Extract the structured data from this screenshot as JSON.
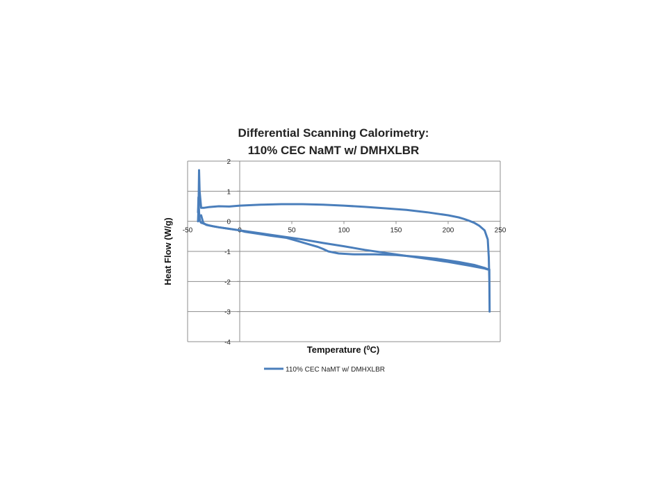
{
  "chart_data": {
    "type": "line",
    "title_lines": [
      "Differential Scanning Calorimetry:",
      "110% CEC NaMT w/ DMHXLBR"
    ],
    "xlabel": "Temperature (",
    "xlabel_sup": "0",
    "xlabel_end": "C)",
    "ylabel": "Heat Flow (W/g)",
    "xlim": [
      -50,
      250
    ],
    "ylim": [
      -4,
      2
    ],
    "x_ticks": [
      -50,
      0,
      50,
      100,
      150,
      200,
      250
    ],
    "x_tick_labels": [
      "-50",
      "0",
      "50",
      "100",
      "150",
      "200",
      "250"
    ],
    "y_ticks": [
      2,
      1,
      0,
      -1,
      -2,
      -3,
      -4
    ],
    "y_tick_labels": [
      "2",
      "1",
      "0",
      "-1",
      "-2",
      "-3",
      "-4"
    ],
    "grid": "horizontal",
    "legend_position": "bottom",
    "series": [
      {
        "name": "110% CEC NaMT w/ DMHXLBR",
        "color": "#4a7ebb",
        "x": [
          -40,
          -39.5,
          -39,
          -38.5,
          -37,
          -34,
          -30,
          -20,
          -10,
          0,
          20,
          40,
          60,
          80,
          100,
          120,
          140,
          160,
          180,
          200,
          210,
          215,
          220,
          225,
          230,
          235,
          238,
          239,
          239.5,
          239.8,
          239.5,
          238.5,
          235,
          225,
          210,
          190,
          170,
          150,
          130,
          110,
          95,
          85,
          80,
          75,
          65,
          55,
          45,
          30,
          15,
          5,
          0,
          -10,
          -20,
          -25,
          -30,
          -33,
          -35,
          -37,
          -38,
          -38.5,
          -39,
          -39.3,
          -39.6,
          -39.8,
          -40
        ],
        "y": [
          0,
          0.5,
          1.7,
          1.0,
          0.45,
          0.45,
          0.47,
          0.5,
          0.49,
          0.52,
          0.55,
          0.57,
          0.57,
          0.55,
          0.52,
          0.48,
          0.43,
          0.38,
          0.3,
          0.2,
          0.13,
          0.08,
          0.02,
          -0.05,
          -0.15,
          -0.3,
          -0.6,
          -1.2,
          -2.0,
          -3.0,
          -1.6,
          -1.6,
          -1.55,
          -1.45,
          -1.35,
          -1.25,
          -1.18,
          -1.12,
          -1.1,
          -1.1,
          -1.07,
          -1.0,
          -0.92,
          -0.85,
          -0.75,
          -0.65,
          -0.55,
          -0.48,
          -0.4,
          -0.35,
          -0.3,
          -0.25,
          -0.2,
          -0.17,
          -0.13,
          -0.1,
          -0.07,
          -0.05,
          0.0,
          0.1,
          0.3,
          0.55,
          0.8,
          0.5,
          0.3
        ]
      },
      {
        "name": "",
        "color": "#4a7ebb",
        "x": [
          -37,
          -35,
          -32,
          -28,
          -20,
          -10,
          0,
          20,
          40,
          60,
          80,
          100,
          120,
          140,
          160,
          180,
          200,
          220,
          235,
          238
        ],
        "y": [
          0.2,
          -0.05,
          -0.12,
          -0.15,
          -0.2,
          -0.25,
          -0.3,
          -0.4,
          -0.5,
          -0.6,
          -0.72,
          -0.83,
          -0.95,
          -1.05,
          -1.15,
          -1.25,
          -1.35,
          -1.47,
          -1.57,
          -1.6
        ]
      }
    ]
  }
}
